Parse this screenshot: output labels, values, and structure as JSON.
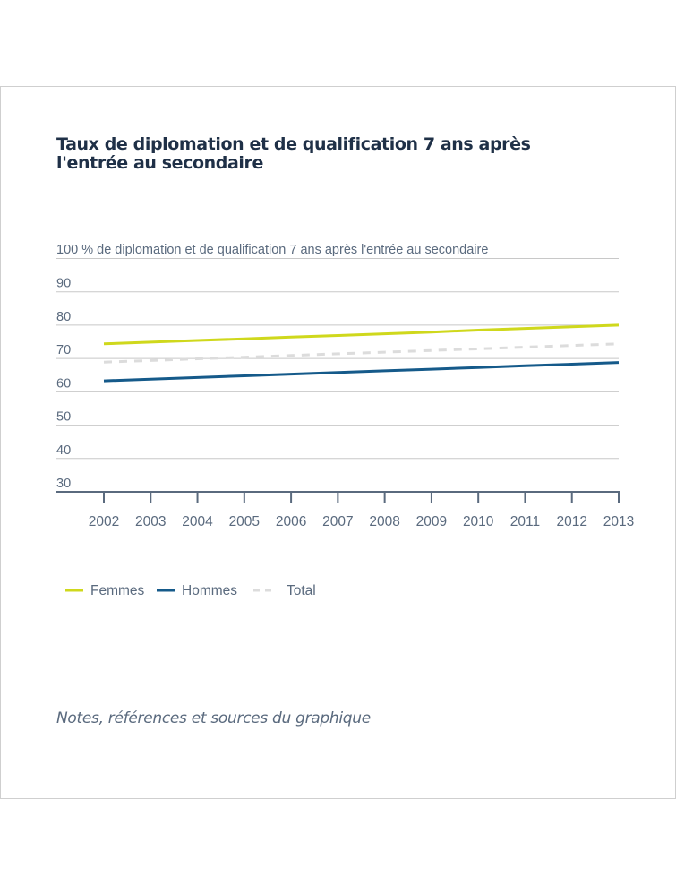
{
  "chart_data": {
    "type": "line",
    "title": "Taux de diplomation et de qualification 7 ans après l'entrée au secondaire",
    "ylabel": "100 % de diplomation et de qualification 7 ans après l'entrée au secondaire",
    "xlabel": "",
    "categories": [
      "2002",
      "2003",
      "2004",
      "2005",
      "2006",
      "2007",
      "2008",
      "2009",
      "2010",
      "2011",
      "2012",
      "2013"
    ],
    "ylim": [
      30,
      100
    ],
    "yticks": [
      30,
      40,
      50,
      60,
      70,
      80,
      90
    ],
    "ytick_labels": [
      "30",
      "40",
      "50",
      "60",
      "70",
      "80",
      "90"
    ],
    "grid": true,
    "legend_position": "bottom-left",
    "series": [
      {
        "name": "Femmes",
        "color": "#cfd81c",
        "style": "solid",
        "values": [
          74.4,
          74.9,
          75.4,
          75.9,
          76.4,
          76.9,
          77.4,
          77.9,
          78.5,
          79.0,
          79.5,
          80.0
        ]
      },
      {
        "name": "Hommes",
        "color": "#155a8a",
        "style": "solid",
        "values": [
          63.3,
          63.8,
          64.3,
          64.8,
          65.3,
          65.8,
          66.3,
          66.8,
          67.3,
          67.8,
          68.3,
          68.8
        ]
      },
      {
        "name": "Total",
        "color": "#dcdcdc",
        "style": "dashed",
        "values": [
          68.9,
          69.4,
          69.9,
          70.4,
          70.9,
          71.4,
          71.9,
          72.4,
          72.9,
          73.4,
          73.9,
          74.4
        ]
      }
    ]
  },
  "notes": "Notes, références et sources du graphique"
}
